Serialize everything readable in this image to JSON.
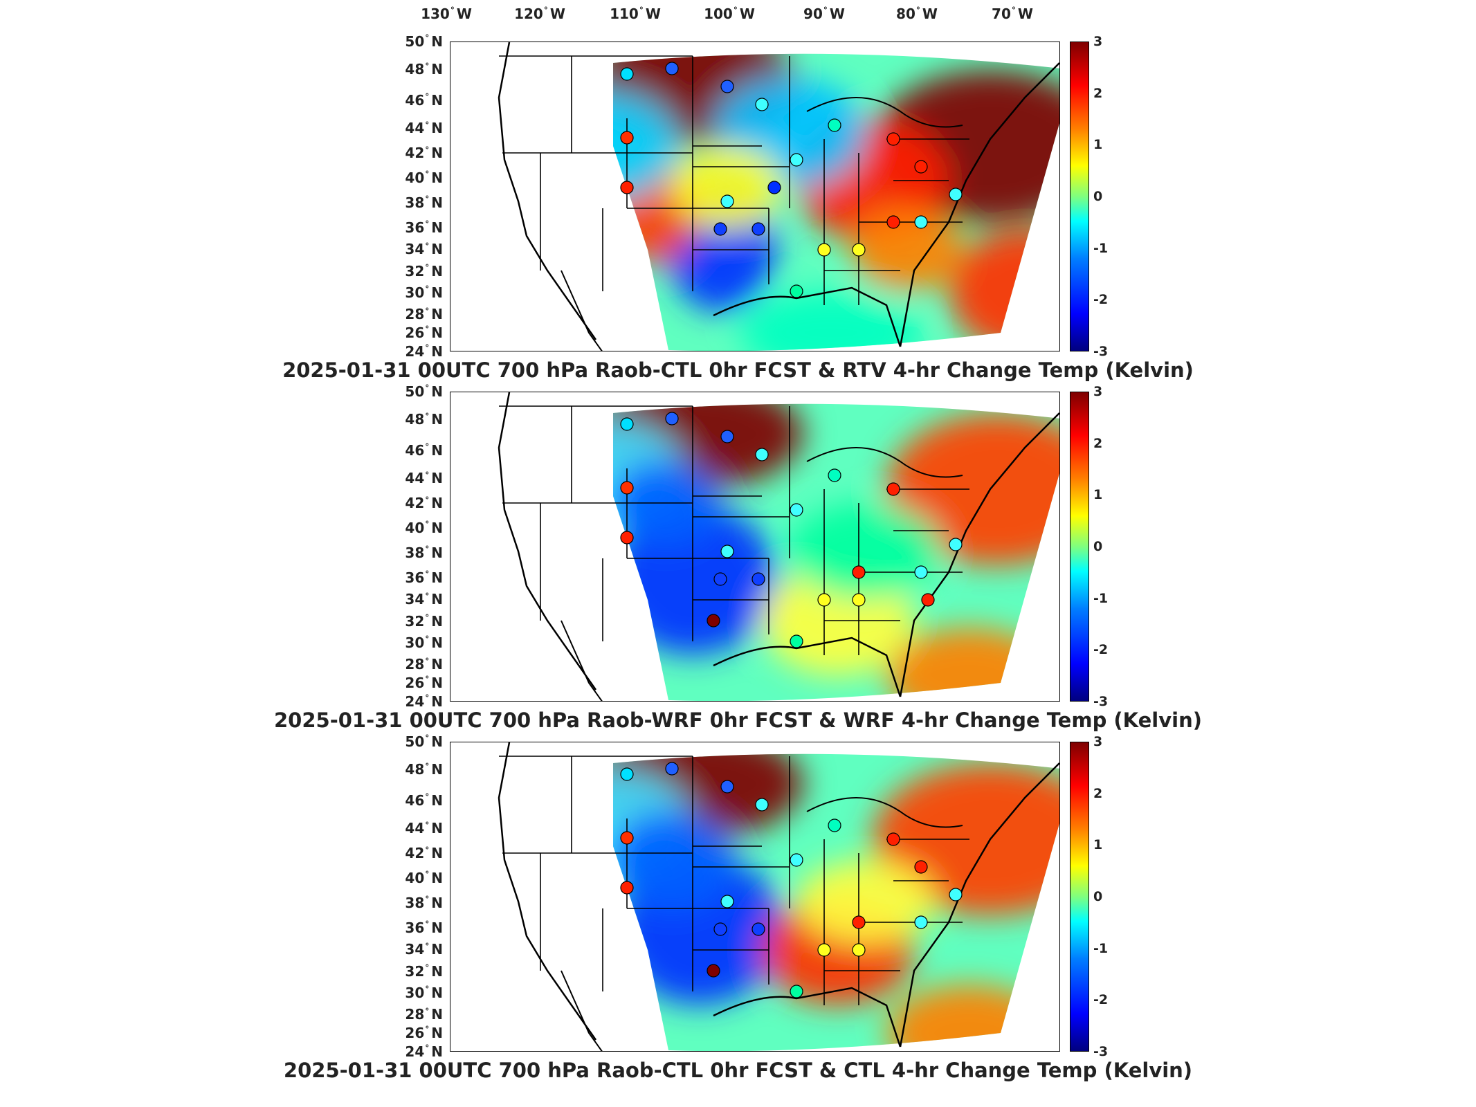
{
  "lon_labels": [
    {
      "deg": "130",
      "hem": "W"
    },
    {
      "deg": "120",
      "hem": "W"
    },
    {
      "deg": "110",
      "hem": "W"
    },
    {
      "deg": "100",
      "hem": "W"
    },
    {
      "deg": "90",
      "hem": "W"
    },
    {
      "deg": "80",
      "hem": "W"
    },
    {
      "deg": "70",
      "hem": "W"
    }
  ],
  "lat_labels": [
    {
      "deg": "50",
      "hem": "N"
    },
    {
      "deg": "48",
      "hem": "N"
    },
    {
      "deg": "46",
      "hem": "N"
    },
    {
      "deg": "44",
      "hem": "N"
    },
    {
      "deg": "42",
      "hem": "N"
    },
    {
      "deg": "40",
      "hem": "N"
    },
    {
      "deg": "38",
      "hem": "N"
    },
    {
      "deg": "36",
      "hem": "N"
    },
    {
      "deg": "34",
      "hem": "N"
    },
    {
      "deg": "32",
      "hem": "N"
    },
    {
      "deg": "30",
      "hem": "N"
    },
    {
      "deg": "28",
      "hem": "N"
    },
    {
      "deg": "26",
      "hem": "N"
    },
    {
      "deg": "24",
      "hem": "N"
    }
  ],
  "colorbar": {
    "ticks": [
      "3",
      "2",
      "1",
      "0",
      "-1",
      "-2",
      "-3"
    ],
    "colors": [
      "#00007f",
      "#0000ff",
      "#007fff",
      "#00ffff",
      "#7fff7f",
      "#ffff00",
      "#ff7f00",
      "#ff0000",
      "#7f0000"
    ]
  },
  "panels": [
    {
      "title": "2025-01-31 00UTC 700 hPa Raob-CTL 0hr FCST & RTV 4-hr Change Temp (Kelvin)"
    },
    {
      "title": "2025-01-31 00UTC 700 hPa Raob-WRF 0hr FCST & WRF 4-hr Change Temp (Kelvin)"
    },
    {
      "title": "2025-01-31 00UTC 700 hPa Raob-CTL 0hr FCST & CTL 4-hr Change Temp (Kelvin)"
    }
  ]
}
